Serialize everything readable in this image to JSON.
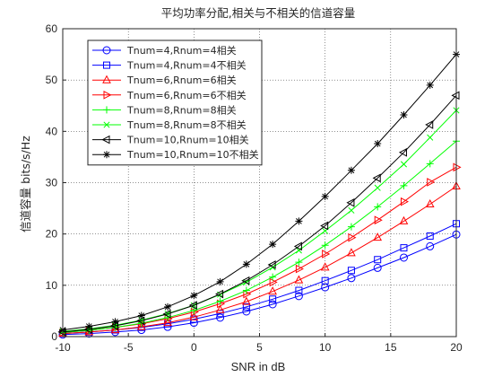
{
  "chart_data": {
    "type": "line",
    "title": "平均功率分配,相关与不相关的信道容量",
    "xlabel": "SNR in dB",
    "ylabel": "信道容量 bits/s/Hz",
    "xlim": [
      -10,
      20
    ],
    "ylim": [
      0,
      60
    ],
    "xticks": [
      "-10",
      "-5",
      "0",
      "5",
      "10",
      "15",
      "20"
    ],
    "yticks": [
      "0",
      "10",
      "20",
      "30",
      "40",
      "50",
      "60"
    ],
    "grid": true,
    "legend_position": "top-left",
    "x": [
      -10,
      -8,
      -6,
      -4,
      -2,
      0,
      2,
      4,
      6,
      8,
      10,
      12,
      14,
      16,
      18,
      20
    ],
    "series": [
      {
        "name": "Tnum=4,Rnum=4相关",
        "color": "#0000ff",
        "marker": "circle",
        "values": [
          0.4,
          0.6,
          0.9,
          1.3,
          1.9,
          2.7,
          3.7,
          4.9,
          6.3,
          7.9,
          9.6,
          11.4,
          13.4,
          15.4,
          17.6,
          19.9
        ]
      },
      {
        "name": "Tnum=4,Rnum=4不相关",
        "color": "#0000ff",
        "marker": "square",
        "values": [
          0.6,
          0.9,
          1.3,
          1.8,
          2.5,
          3.4,
          4.5,
          5.8,
          7.3,
          9.0,
          10.9,
          12.9,
          15.0,
          17.3,
          19.6,
          22.0
        ]
      },
      {
        "name": "Tnum=6,Rnum=6相关",
        "color": "#ff0000",
        "marker": "triangle-up",
        "values": [
          0.6,
          0.9,
          1.3,
          1.9,
          2.7,
          3.8,
          5.2,
          6.8,
          8.8,
          11.0,
          13.5,
          16.3,
          19.3,
          22.5,
          25.8,
          29.3
        ]
      },
      {
        "name": "Tnum=6,Rnum=6不相关",
        "color": "#ff0000",
        "marker": "triangle-right",
        "values": [
          0.8,
          1.2,
          1.8,
          2.5,
          3.5,
          4.8,
          6.4,
          8.3,
          10.6,
          13.2,
          16.1,
          19.3,
          22.7,
          26.3,
          30.1,
          33.0
        ]
      },
      {
        "name": "Tnum=8,Rnum=8相关",
        "color": "#00ff00",
        "marker": "plus",
        "values": [
          0.8,
          1.2,
          1.8,
          2.6,
          3.7,
          5.1,
          6.9,
          9.0,
          11.6,
          14.5,
          17.8,
          21.4,
          25.3,
          29.4,
          33.7,
          38.1
        ]
      },
      {
        "name": "Tnum=8,Rnum=8不相关",
        "color": "#00ff00",
        "marker": "x",
        "values": [
          1.0,
          1.5,
          2.2,
          3.2,
          4.5,
          6.1,
          8.2,
          10.6,
          13.5,
          16.8,
          20.6,
          24.6,
          29.0,
          33.6,
          38.8,
          44.1
        ]
      },
      {
        "name": "Tnum=10,Rnum=10相关",
        "color": "#000000",
        "marker": "triangle-left",
        "values": [
          0.9,
          1.4,
          2.1,
          3.1,
          4.4,
          6.1,
          8.3,
          10.9,
          14.0,
          17.6,
          21.6,
          26.1,
          30.9,
          35.9,
          41.3,
          47.0
        ]
      },
      {
        "name": "Tnum=10,Rnum=10不相关",
        "color": "#000000",
        "marker": "asterisk",
        "values": [
          1.3,
          2.0,
          2.9,
          4.1,
          5.8,
          8.0,
          10.7,
          14.1,
          18.0,
          22.5,
          27.3,
          32.4,
          37.6,
          43.2,
          49.0,
          55.0
        ]
      }
    ]
  }
}
